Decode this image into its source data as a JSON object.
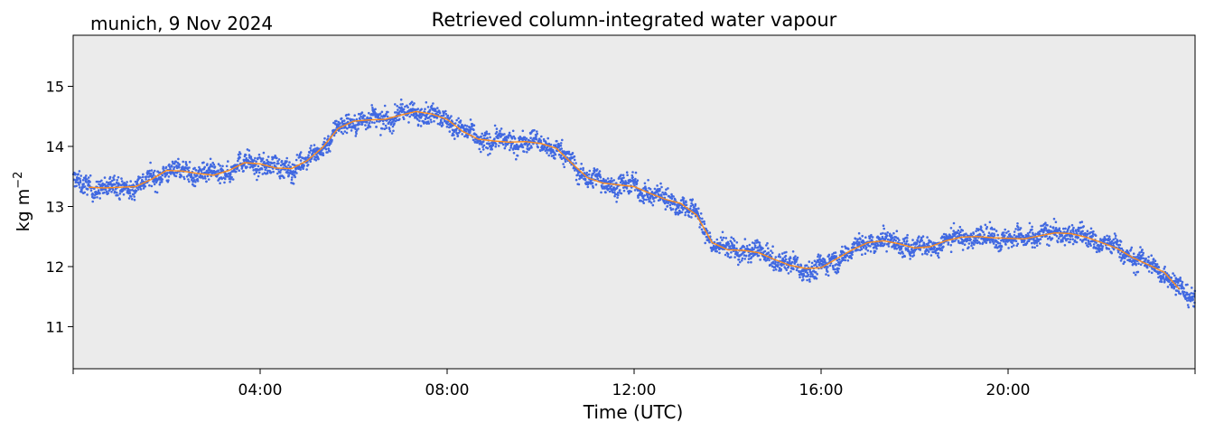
{
  "chart_data": {
    "type": "scatter",
    "title": "Retrieved column-integrated water vapour",
    "subtitle": "munich, 9 Nov 2024",
    "xlabel": "Time (UTC)",
    "ylabel": "kg m",
    "ylabel_exp": "−2",
    "xlim": [
      "00:00",
      "24:00"
    ],
    "ylim": [
      10.3,
      15.85
    ],
    "x_ticks": [
      "04:00",
      "08:00",
      "12:00",
      "16:00",
      "20:00"
    ],
    "y_ticks": [
      "11",
      "12",
      "13",
      "14",
      "15"
    ],
    "grid": false,
    "colors": {
      "background": "#ebebeb",
      "scatter": "#4169e1",
      "line": "#ff8c1a"
    },
    "series": [
      {
        "kind": "smoothed-line",
        "x": [
          "00:20",
          "00:40",
          "01:00",
          "01:20",
          "01:40",
          "02:00",
          "02:20",
          "02:40",
          "03:00",
          "03:20",
          "03:40",
          "04:00",
          "04:20",
          "04:40",
          "05:00",
          "05:20",
          "05:40",
          "06:00",
          "06:20",
          "06:40",
          "07:00",
          "07:20",
          "07:40",
          "08:00",
          "08:20",
          "08:40",
          "09:00",
          "09:20",
          "09:40",
          "10:00",
          "10:20",
          "10:40",
          "11:00",
          "11:20",
          "11:40",
          "12:00",
          "12:20",
          "12:40",
          "13:00",
          "13:20",
          "13:40",
          "14:00",
          "14:20",
          "14:40",
          "15:00",
          "15:20",
          "15:40",
          "16:00",
          "16:20",
          "16:40",
          "17:00",
          "17:20",
          "17:40",
          "18:00",
          "18:20",
          "18:40",
          "19:00",
          "19:20",
          "19:40",
          "20:00",
          "20:20",
          "20:40",
          "21:00",
          "21:20",
          "21:40",
          "22:00",
          "22:20",
          "22:40",
          "23:00",
          "23:20",
          "23:40"
        ],
        "values": [
          13.32,
          13.31,
          13.32,
          13.33,
          13.45,
          13.6,
          13.59,
          13.55,
          13.52,
          13.6,
          13.73,
          13.71,
          13.64,
          13.63,
          13.76,
          13.98,
          14.3,
          14.42,
          14.44,
          14.45,
          14.52,
          14.58,
          14.54,
          14.45,
          14.25,
          14.12,
          14.09,
          14.07,
          14.08,
          14.05,
          13.97,
          13.72,
          13.48,
          13.39,
          13.36,
          13.33,
          13.22,
          13.12,
          13.05,
          12.86,
          12.4,
          12.28,
          12.27,
          12.23,
          12.12,
          12.02,
          11.97,
          11.98,
          12.13,
          12.28,
          12.4,
          12.43,
          12.38,
          12.31,
          12.33,
          12.43,
          12.49,
          12.5,
          12.48,
          12.47,
          12.46,
          12.51,
          12.56,
          12.55,
          12.49,
          12.4,
          12.3,
          12.15,
          12.03,
          11.91,
          11.62
        ]
      }
    ]
  }
}
